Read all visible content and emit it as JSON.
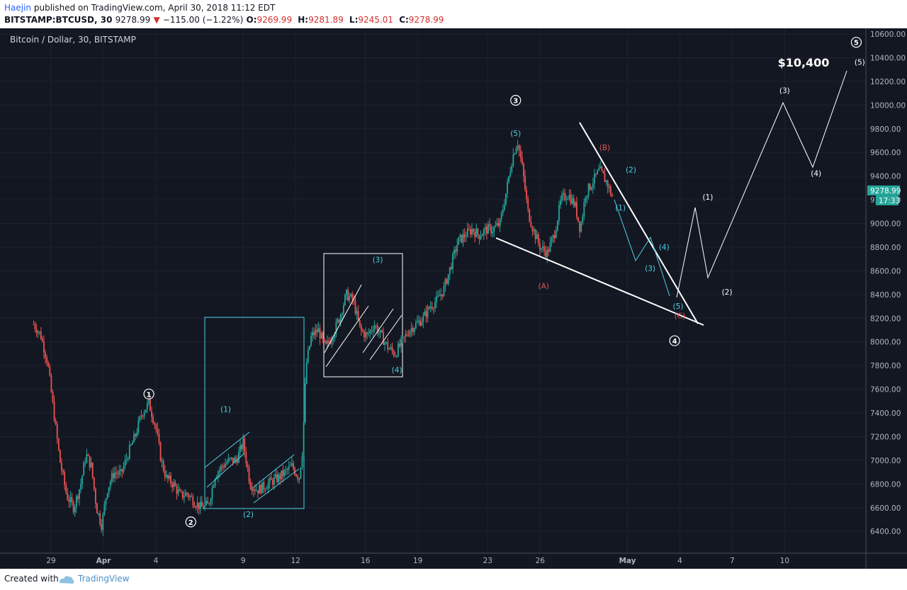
{
  "header": {
    "author": "Haejin",
    "published_text": " published on TradingView.com, April 30, 2018 11:12 EDT",
    "symbol": "BITSTAMP:BTCUSD, 30",
    "last": "9278.99",
    "change": "−115.00 (−1.22%)",
    "open_label": "O:",
    "open": "9269.99",
    "high_label": "H:",
    "high": "9281.89",
    "low_label": "L:",
    "low": "9245.01",
    "close_label": "C:",
    "close": "9278.99"
  },
  "footer": {
    "created_with": "Created with",
    "brand": "TradingView"
  },
  "colors": {
    "background": "#131722",
    "up": "#26a69a",
    "down": "#ef5350",
    "wave_white": "#ffffff",
    "wave_cyan": "#4dd0e1",
    "wave_red": "#ef5350",
    "price_tag": "#26a69a"
  },
  "chart_data": {
    "type": "candlestick",
    "title": "Bitcoin / Dollar, 30, BITSTAMP",
    "price_axis": {
      "ticks": [
        "10600.00",
        "10400.00",
        "10200.00",
        "10000.00",
        "9800.00",
        "9600.00",
        "9400.00",
        "9200.00",
        "9000.00",
        "8800.00",
        "8600.00",
        "8400.00",
        "8200.00",
        "8000.00",
        "7800.00",
        "7600.00",
        "7400.00",
        "7200.00",
        "7000.00",
        "6800.00",
        "6600.00",
        "6400.00"
      ],
      "ylim": [
        6250,
        10660
      ],
      "last_price": "9278.99",
      "countdown": "17:33"
    },
    "time_axis": {
      "ticks": [
        "29",
        "Apr",
        "4",
        "9",
        "12",
        "16",
        "19",
        "23",
        "26",
        "May",
        "4",
        "7",
        "10"
      ],
      "tick_days": [
        -3,
        0,
        3,
        8,
        11,
        15,
        18,
        22,
        25,
        30,
        33,
        36,
        39
      ],
      "day_unit": "days relative to Apr 1, 2018"
    },
    "price_path": [
      [
        -4.0,
        8150
      ],
      [
        -3.6,
        8060
      ],
      [
        -3.2,
        7830
      ],
      [
        -2.8,
        7350
      ],
      [
        -2.5,
        7000
      ],
      [
        -2.1,
        6700
      ],
      [
        -1.7,
        6600
      ],
      [
        -1.3,
        6800
      ],
      [
        -1.0,
        7050
      ],
      [
        -0.7,
        6950
      ],
      [
        -0.4,
        6600
      ],
      [
        -0.1,
        6450
      ],
      [
        0.2,
        6750
      ],
      [
        0.6,
        6900
      ],
      [
        1.0,
        6880
      ],
      [
        1.4,
        7050
      ],
      [
        1.8,
        7200
      ],
      [
        2.2,
        7400
      ],
      [
        2.6,
        7480
      ],
      [
        3.0,
        7280
      ],
      [
        3.3,
        7000
      ],
      [
        3.6,
        6850
      ],
      [
        4.0,
        6800
      ],
      [
        4.4,
        6700
      ],
      [
        4.8,
        6720
      ],
      [
        5.2,
        6650
      ],
      [
        5.6,
        6600
      ],
      [
        6.0,
        6620
      ],
      [
        6.4,
        6880
      ],
      [
        6.8,
        6950
      ],
      [
        7.2,
        7000
      ],
      [
        7.6,
        7000
      ],
      [
        8.0,
        7150
      ],
      [
        8.4,
        6800
      ],
      [
        8.8,
        6750
      ],
      [
        9.2,
        6780
      ],
      [
        9.6,
        6820
      ],
      [
        10.0,
        6850
      ],
      [
        10.4,
        6900
      ],
      [
        10.8,
        6950
      ],
      [
        11.2,
        6850
      ],
      [
        11.4,
        7100
      ],
      [
        11.6,
        7800
      ],
      [
        11.9,
        8050
      ],
      [
        12.3,
        8100
      ],
      [
        12.7,
        7950
      ],
      [
        13.1,
        8050
      ],
      [
        13.5,
        8200
      ],
      [
        13.9,
        8400
      ],
      [
        14.3,
        8350
      ],
      [
        14.7,
        8100
      ],
      [
        15.1,
        8050
      ],
      [
        15.5,
        8150
      ],
      [
        15.9,
        8050
      ],
      [
        16.3,
        7950
      ],
      [
        16.7,
        7900
      ],
      [
        17.1,
        8000
      ],
      [
        17.5,
        8100
      ],
      [
        17.9,
        8150
      ],
      [
        18.3,
        8200
      ],
      [
        18.7,
        8300
      ],
      [
        19.1,
        8350
      ],
      [
        19.5,
        8450
      ],
      [
        19.9,
        8650
      ],
      [
        20.3,
        8850
      ],
      [
        20.7,
        8900
      ],
      [
        21.1,
        8950
      ],
      [
        21.5,
        8900
      ],
      [
        21.9,
        8950
      ],
      [
        22.3,
        8950
      ],
      [
        22.7,
        9000
      ],
      [
        23.1,
        9300
      ],
      [
        23.4,
        9550
      ],
      [
        23.7,
        9700
      ],
      [
        24.0,
        9450
      ],
      [
        24.3,
        9100
      ],
      [
        24.6,
        8950
      ],
      [
        25.0,
        8800
      ],
      [
        25.4,
        8750
      ],
      [
        25.8,
        8900
      ],
      [
        26.2,
        9200
      ],
      [
        26.6,
        9250
      ],
      [
        27.0,
        9150
      ],
      [
        27.3,
        8950
      ],
      [
        27.6,
        9250
      ],
      [
        28.0,
        9350
      ],
      [
        28.4,
        9450
      ],
      [
        28.8,
        9350
      ],
      [
        29.2,
        9200
      ]
    ],
    "annotations": {
      "title_label": "$10,400",
      "white_waves": [
        {
          "label": "1",
          "day": 2.6,
          "price": 7560
        },
        {
          "label": "2",
          "day": 5.0,
          "price": 6480
        },
        {
          "label": "3",
          "day": 23.6,
          "price": 10040
        },
        {
          "label": "4",
          "day": 32.7,
          "price": 8010
        },
        {
          "label": "5",
          "day": 43.1,
          "price": 10530
        }
      ],
      "white_minor": [
        {
          "label": "(1)",
          "day": 34.6,
          "price": 9200
        },
        {
          "label": "(2)",
          "day": 35.7,
          "price": 8400
        },
        {
          "label": "(3)",
          "day": 39.0,
          "price": 10100
        },
        {
          "label": "(4)",
          "day": 40.8,
          "price": 9400
        },
        {
          "label": "(5)",
          "day": 43.3,
          "price": 10340
        }
      ],
      "cyan_labels": [
        {
          "label": "(1)",
          "day": 7.0,
          "price": 7410
        },
        {
          "label": "(2)",
          "day": 8.3,
          "price": 6520
        },
        {
          "label": "(3)",
          "day": 15.7,
          "price": 8670
        },
        {
          "label": "(4)",
          "day": 16.8,
          "price": 7740
        },
        {
          "label": "(5)",
          "day": 23.6,
          "price": 9740
        },
        {
          "label": "(1)",
          "day": 29.6,
          "price": 9110
        },
        {
          "label": "(2)",
          "day": 30.2,
          "price": 9430
        },
        {
          "label": "(3)",
          "day": 31.3,
          "price": 8600
        },
        {
          "label": "(4)",
          "day": 32.1,
          "price": 8780
        },
        {
          "label": "(5)",
          "day": 32.9,
          "price": 8280
        }
      ],
      "red_labels": [
        {
          "label": "(A)",
          "day": 25.2,
          "price": 8450
        },
        {
          "label": "(B)",
          "day": 28.7,
          "price": 9620
        },
        {
          "label": "(C)",
          "day": 33.0,
          "price": 8200
        }
      ]
    }
  }
}
